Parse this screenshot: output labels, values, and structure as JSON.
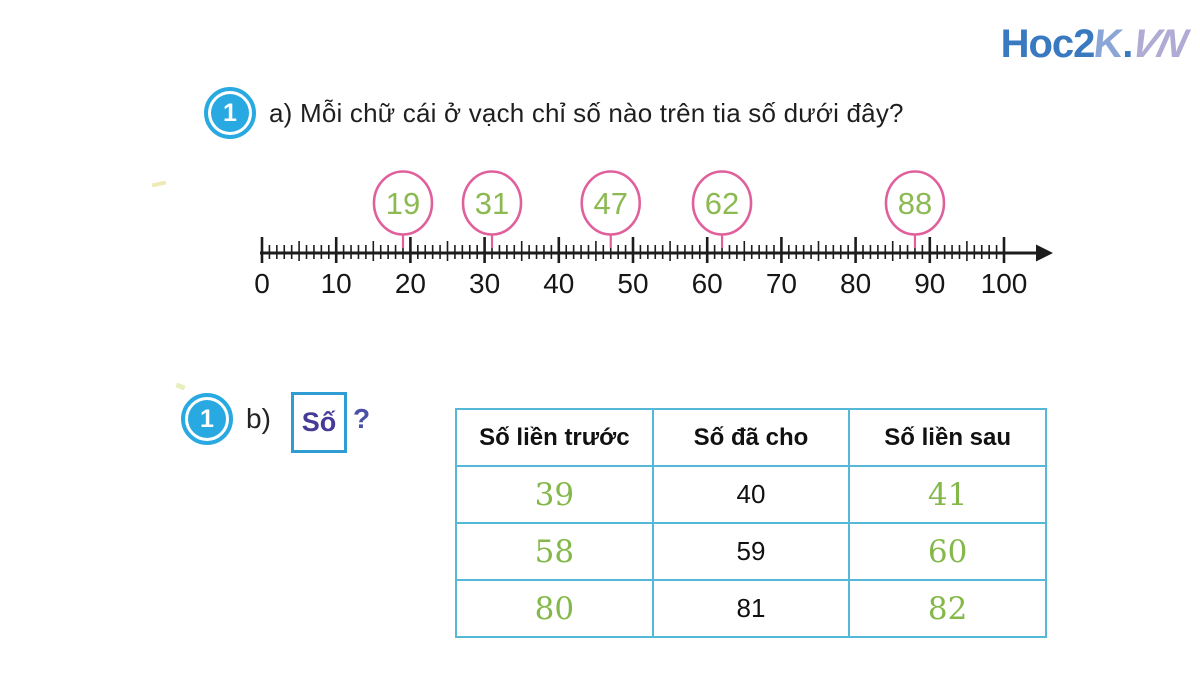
{
  "logo": {
    "part1": "Hoc2",
    "part2": "K",
    "dot": ".",
    "part3": "VN"
  },
  "colors": {
    "badge_cyan": "#29a9e1",
    "circle_pink": "#e0609c",
    "answer_green": "#84b84a",
    "circle_green": "#8cba52",
    "table_border": "#56b8d9",
    "box_border": "#2f9cd4",
    "so_purple": "#453a96",
    "question_purple": "#4a51a8",
    "logo_blue": "#3879c0",
    "logo_k": "#8ba6d6",
    "logo_vn": "#b0abd4",
    "ink": "#1c1c1c"
  },
  "section_a": {
    "badge": "1",
    "prefix": "a)",
    "question": "Mỗi chữ cái ở vạch chỉ số nào trên tia số dưới đây?"
  },
  "number_line": {
    "min": 0,
    "max": 100,
    "minor_step": 1,
    "medium_step": 5,
    "major_step": 10,
    "tick_labels": [
      "0",
      "10",
      "20",
      "30",
      "40",
      "50",
      "60",
      "70",
      "80",
      "90",
      "100"
    ],
    "marked_values": [
      19,
      31,
      47,
      62,
      88
    ]
  },
  "section_b": {
    "badge": "1",
    "prefix": "b)",
    "box_label": "Số",
    "question_mark": "?"
  },
  "table": {
    "headers": [
      "Số liền trước",
      "Số đã cho",
      "Số liền sau"
    ],
    "rows": [
      {
        "prev": "39",
        "given": "40",
        "next": "41"
      },
      {
        "prev": "58",
        "given": "59",
        "next": "60"
      },
      {
        "prev": "80",
        "given": "81",
        "next": "82"
      }
    ]
  }
}
